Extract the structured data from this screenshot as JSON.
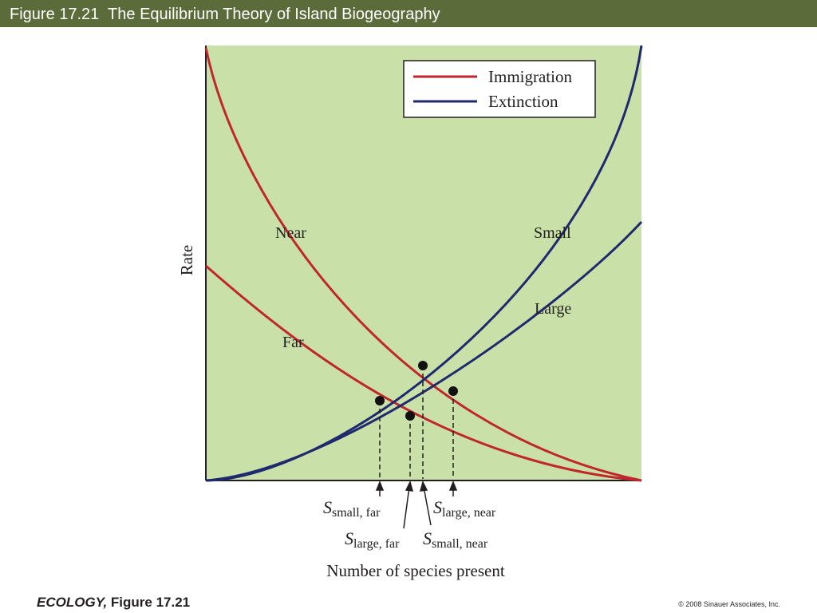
{
  "header": {
    "title": "Figure 17.21  The Equilibrium Theory of Island Biogeography"
  },
  "figure": {
    "y_axis_label": "Rate",
    "x_axis_label": "Number of species present",
    "legend": [
      "Immigration",
      "Extinction"
    ],
    "curve_labels": {
      "near": "Near",
      "far": "Far",
      "small": "Small",
      "large": "Large"
    },
    "equilibria": [
      {
        "symbol": "S",
        "subscript": "small, far"
      },
      {
        "symbol": "S",
        "subscript": "large, near"
      },
      {
        "symbol": "S",
        "subscript": "large, far"
      },
      {
        "symbol": "S",
        "subscript": "small, near"
      }
    ]
  },
  "footer": {
    "book": "ECOLOGY,",
    "figure": "Figure 17.21",
    "copyright": "© 2008 Sinauer Associates, Inc."
  }
}
